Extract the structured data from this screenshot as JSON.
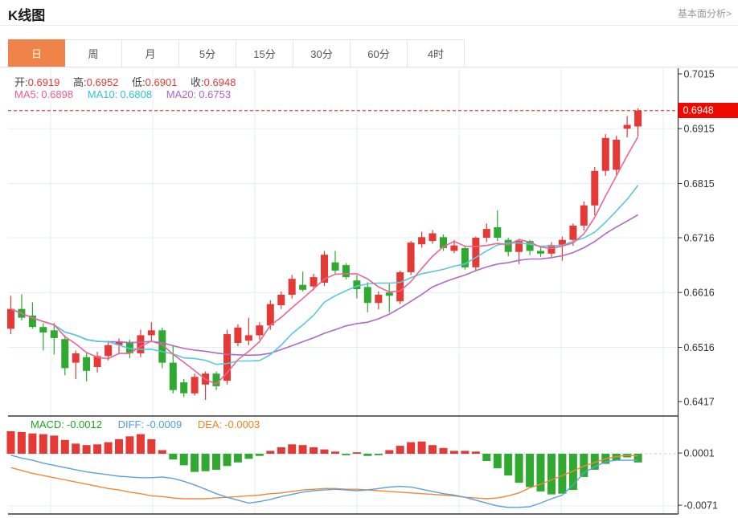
{
  "header": {
    "title": "K线图",
    "link": "基本面分析>"
  },
  "tabs": {
    "items": [
      {
        "label": "日",
        "active": true
      },
      {
        "label": "周",
        "active": false
      },
      {
        "label": "月",
        "active": false
      },
      {
        "label": "5分",
        "active": false
      },
      {
        "label": "15分",
        "active": false
      },
      {
        "label": "30分",
        "active": false
      },
      {
        "label": "60分",
        "active": false
      },
      {
        "label": "4时",
        "active": false
      }
    ]
  },
  "readout": {
    "open_label": "开:",
    "open": "0.6919",
    "high_label": "高:",
    "high": "0.6952",
    "low_label": "低:",
    "low": "0.6901",
    "close_label": "收:",
    "close": "0.6948",
    "ma5_label": "MA5:",
    "ma5": "0.6898",
    "ma10_label": "MA10:",
    "ma10": "0.6808",
    "ma20_label": "MA20:",
    "ma20": "0.6753"
  },
  "macd_readout": {
    "macd_label": "MACD:",
    "macd": "-0.0012",
    "diff_label": "DIFF:",
    "diff": "-0.0009",
    "dea_label": "DEA:",
    "dea": "-0.0003"
  },
  "colors": {
    "accent": "#f0834a",
    "up": "#e53935",
    "down": "#2fa92f",
    "ma5": "#ef6492",
    "ma10": "#57c8e0",
    "ma20": "#b168c8",
    "diff": "#5da0e2",
    "dea": "#f0883c",
    "price_badge": "#ee0a00",
    "current_price_line": "#f01414",
    "grid": "#e4edf5",
    "macd_zero_line": "#a9d9e8",
    "axis_text": "#333333"
  },
  "chart_data": {
    "type": "candlestick",
    "title": "K线图",
    "timeframe": "日",
    "current_price": "0.6948",
    "price_axis": {
      "ticks": [
        "0.7015",
        "0.6915",
        "0.6815",
        "0.6716",
        "0.6616",
        "0.6516",
        "0.6417"
      ],
      "range": [
        0.6417,
        0.7015
      ]
    },
    "last_candle": {
      "open": 0.6919,
      "high": 0.6952,
      "low": 0.6901,
      "close": 0.6948
    },
    "moving_averages": {
      "ma5": 0.6898,
      "ma10": 0.6808,
      "ma20": 0.6753
    },
    "candles": {
      "open": [
        0.655,
        0.6586,
        0.6574,
        0.6553,
        0.6547,
        0.6531,
        0.6488,
        0.6498,
        0.648,
        0.65,
        0.652,
        0.6526,
        0.6505,
        0.6538,
        0.6547,
        0.6488,
        0.6452,
        0.6432,
        0.6448,
        0.6468,
        0.6455,
        0.6524,
        0.6528,
        0.6538,
        0.6556,
        0.6593,
        0.6612,
        0.663,
        0.6627,
        0.6634,
        0.6671,
        0.6666,
        0.6638,
        0.6626,
        0.6597,
        0.6616,
        0.66,
        0.6653,
        0.6704,
        0.671,
        0.6717,
        0.6692,
        0.6697,
        0.6662,
        0.6716,
        0.6735,
        0.6712,
        0.669,
        0.671,
        0.6692,
        0.6687,
        0.6703,
        0.6712,
        0.6738,
        0.6775,
        0.6838,
        0.684,
        0.6915,
        0.6919
      ],
      "high": [
        0.661,
        0.6613,
        0.6598,
        0.656,
        0.656,
        0.6538,
        0.651,
        0.6505,
        0.6508,
        0.6528,
        0.6532,
        0.653,
        0.6548,
        0.6562,
        0.6552,
        0.652,
        0.6458,
        0.6468,
        0.6472,
        0.6472,
        0.6548,
        0.6558,
        0.657,
        0.6562,
        0.6602,
        0.6618,
        0.6648,
        0.6654,
        0.665,
        0.6692,
        0.6692,
        0.667,
        0.6648,
        0.6635,
        0.6618,
        0.6632,
        0.6656,
        0.671,
        0.6727,
        0.673,
        0.6722,
        0.6712,
        0.6702,
        0.6718,
        0.6742,
        0.6766,
        0.6716,
        0.6714,
        0.6712,
        0.67,
        0.6708,
        0.6718,
        0.6742,
        0.6782,
        0.6845,
        0.6905,
        0.6902,
        0.6938,
        0.6952
      ],
      "low": [
        0.654,
        0.6565,
        0.655,
        0.651,
        0.6503,
        0.6465,
        0.6458,
        0.6454,
        0.647,
        0.6492,
        0.6505,
        0.6496,
        0.6498,
        0.6525,
        0.6478,
        0.6432,
        0.6425,
        0.6428,
        0.642,
        0.6438,
        0.6448,
        0.6518,
        0.652,
        0.653,
        0.6548,
        0.6586,
        0.6605,
        0.6618,
        0.662,
        0.6628,
        0.665,
        0.664,
        0.6605,
        0.658,
        0.6585,
        0.658,
        0.6595,
        0.6648,
        0.6698,
        0.6705,
        0.6692,
        0.6688,
        0.6658,
        0.6655,
        0.6708,
        0.671,
        0.6682,
        0.6668,
        0.6684,
        0.6681,
        0.6681,
        0.6674,
        0.6701,
        0.6729,
        0.6757,
        0.6829,
        0.6831,
        0.6899,
        0.6901
      ],
      "close": [
        0.6586,
        0.657,
        0.6553,
        0.6543,
        0.6533,
        0.6478,
        0.6505,
        0.6473,
        0.65,
        0.652,
        0.6526,
        0.6505,
        0.6538,
        0.6547,
        0.6488,
        0.6438,
        0.6432,
        0.6462,
        0.6468,
        0.6445,
        0.654,
        0.6552,
        0.6538,
        0.6556,
        0.6595,
        0.6612,
        0.6641,
        0.6621,
        0.6644,
        0.6685,
        0.6656,
        0.6644,
        0.6622,
        0.6597,
        0.6612,
        0.661,
        0.6653,
        0.6707,
        0.6717,
        0.6724,
        0.6697,
        0.6702,
        0.6662,
        0.6716,
        0.6732,
        0.6716,
        0.669,
        0.671,
        0.6692,
        0.6687,
        0.6703,
        0.6712,
        0.6738,
        0.6775,
        0.6838,
        0.6898,
        0.6895,
        0.6922,
        0.6948
      ]
    },
    "macd": {
      "axis_ticks": [
        "0.0001",
        "-0.0071"
      ],
      "latest": {
        "macd": -0.0012,
        "diff": -0.0009,
        "dea": -0.0003
      },
      "histogram": [
        0.0031,
        0.003,
        0.0028,
        0.0027,
        0.0025,
        0.0019,
        0.0014,
        0.0012,
        0.0013,
        0.0016,
        0.002,
        0.0024,
        0.0027,
        0.002,
        0.0005,
        -0.0008,
        -0.0016,
        -0.0025,
        -0.0024,
        -0.0022,
        -0.0017,
        -0.0012,
        -0.0007,
        -0.0003,
        0.0004,
        0.0009,
        0.0013,
        0.0012,
        0.0009,
        0.0006,
        0.0003,
        -0.0002,
        0.0002,
        -0.0003,
        -0.0002,
        0.0005,
        0.0011,
        0.0016,
        0.0017,
        0.0012,
        0.0008,
        0.0004,
        0.0004,
        0.0003,
        -0.001,
        -0.002,
        -0.003,
        -0.004,
        -0.0046,
        -0.0052,
        -0.0056,
        -0.0055,
        -0.005,
        -0.0032,
        -0.0022,
        -0.0014,
        -0.0009,
        -0.0005,
        -0.0012
      ],
      "diff": [
        -0.0002,
        -0.0006,
        -0.0009,
        -0.0013,
        -0.0016,
        -0.0019,
        -0.0022,
        -0.0025,
        -0.0027,
        -0.0029,
        -0.0031,
        -0.0032,
        -0.0033,
        -0.0033,
        -0.0032,
        -0.0034,
        -0.0038,
        -0.0043,
        -0.0049,
        -0.0055,
        -0.006,
        -0.0064,
        -0.0068,
        -0.0066,
        -0.0063,
        -0.0059,
        -0.0056,
        -0.0053,
        -0.0051,
        -0.005,
        -0.0049,
        -0.005,
        -0.0051,
        -0.005,
        -0.0048,
        -0.0046,
        -0.0045,
        -0.0046,
        -0.0049,
        -0.0052,
        -0.0055,
        -0.0057,
        -0.006,
        -0.0064,
        -0.0068,
        -0.0072,
        -0.0074,
        -0.0074,
        -0.0073,
        -0.0068,
        -0.0062,
        -0.0057,
        -0.0043,
        -0.0026,
        -0.0018,
        -0.0011,
        -0.0009,
        -0.0009,
        -0.0009
      ],
      "dea": [
        -0.0019,
        -0.0023,
        -0.0027,
        -0.003,
        -0.0033,
        -0.0036,
        -0.0039,
        -0.0042,
        -0.0045,
        -0.0048,
        -0.005,
        -0.0053,
        -0.0055,
        -0.0058,
        -0.0059,
        -0.0061,
        -0.0062,
        -0.0062,
        -0.0062,
        -0.0061,
        -0.006,
        -0.0059,
        -0.0058,
        -0.0057,
        -0.0055,
        -0.0054,
        -0.0052,
        -0.005,
        -0.0049,
        -0.0048,
        -0.0048,
        -0.0049,
        -0.0049,
        -0.005,
        -0.0051,
        -0.0052,
        -0.0053,
        -0.0054,
        -0.0055,
        -0.0056,
        -0.0057,
        -0.0058,
        -0.006,
        -0.0061,
        -0.0062,
        -0.0061,
        -0.0058,
        -0.0054,
        -0.0047,
        -0.0042,
        -0.0036,
        -0.003,
        -0.0024,
        -0.0017,
        -0.0012,
        -0.0007,
        -0.0004,
        -0.0002,
        -0.0003
      ]
    }
  }
}
